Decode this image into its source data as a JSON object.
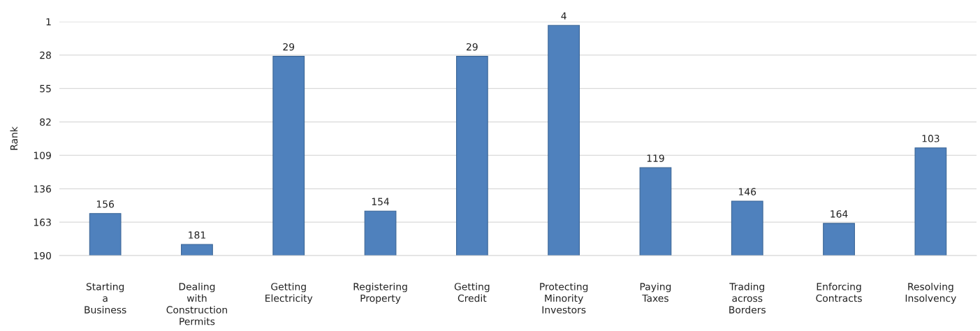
{
  "chart_data": {
    "type": "bar",
    "ylabel": "Rank",
    "categories": [
      "Starting\na\nBusiness",
      "Dealing\nwith\nConstruction\nPermits",
      "Getting\nElectricity",
      "Registering\nProperty",
      "Getting\nCredit",
      "Protecting\nMinority\nInvestors",
      "Paying\nTaxes",
      "Trading\nacross\nBorders",
      "Enforcing\nContracts",
      "Resolving\nInsolvency"
    ],
    "base": [
      190,
      190,
      190,
      190,
      190,
      190,
      190,
      190,
      190,
      190
    ],
    "values": [
      -34,
      -9,
      -161,
      -36,
      -161,
      -186,
      -71,
      -44,
      -26,
      -87
    ],
    "value_labels": [
      "156",
      "181",
      "29",
      "154",
      "29",
      "4",
      "119",
      "146",
      "164",
      "103"
    ],
    "color": "#4f81bd",
    "ylim": [
      190,
      1
    ],
    "yticks": [
      1,
      28,
      55,
      82,
      109,
      136,
      163,
      190
    ],
    "grid": "y"
  }
}
